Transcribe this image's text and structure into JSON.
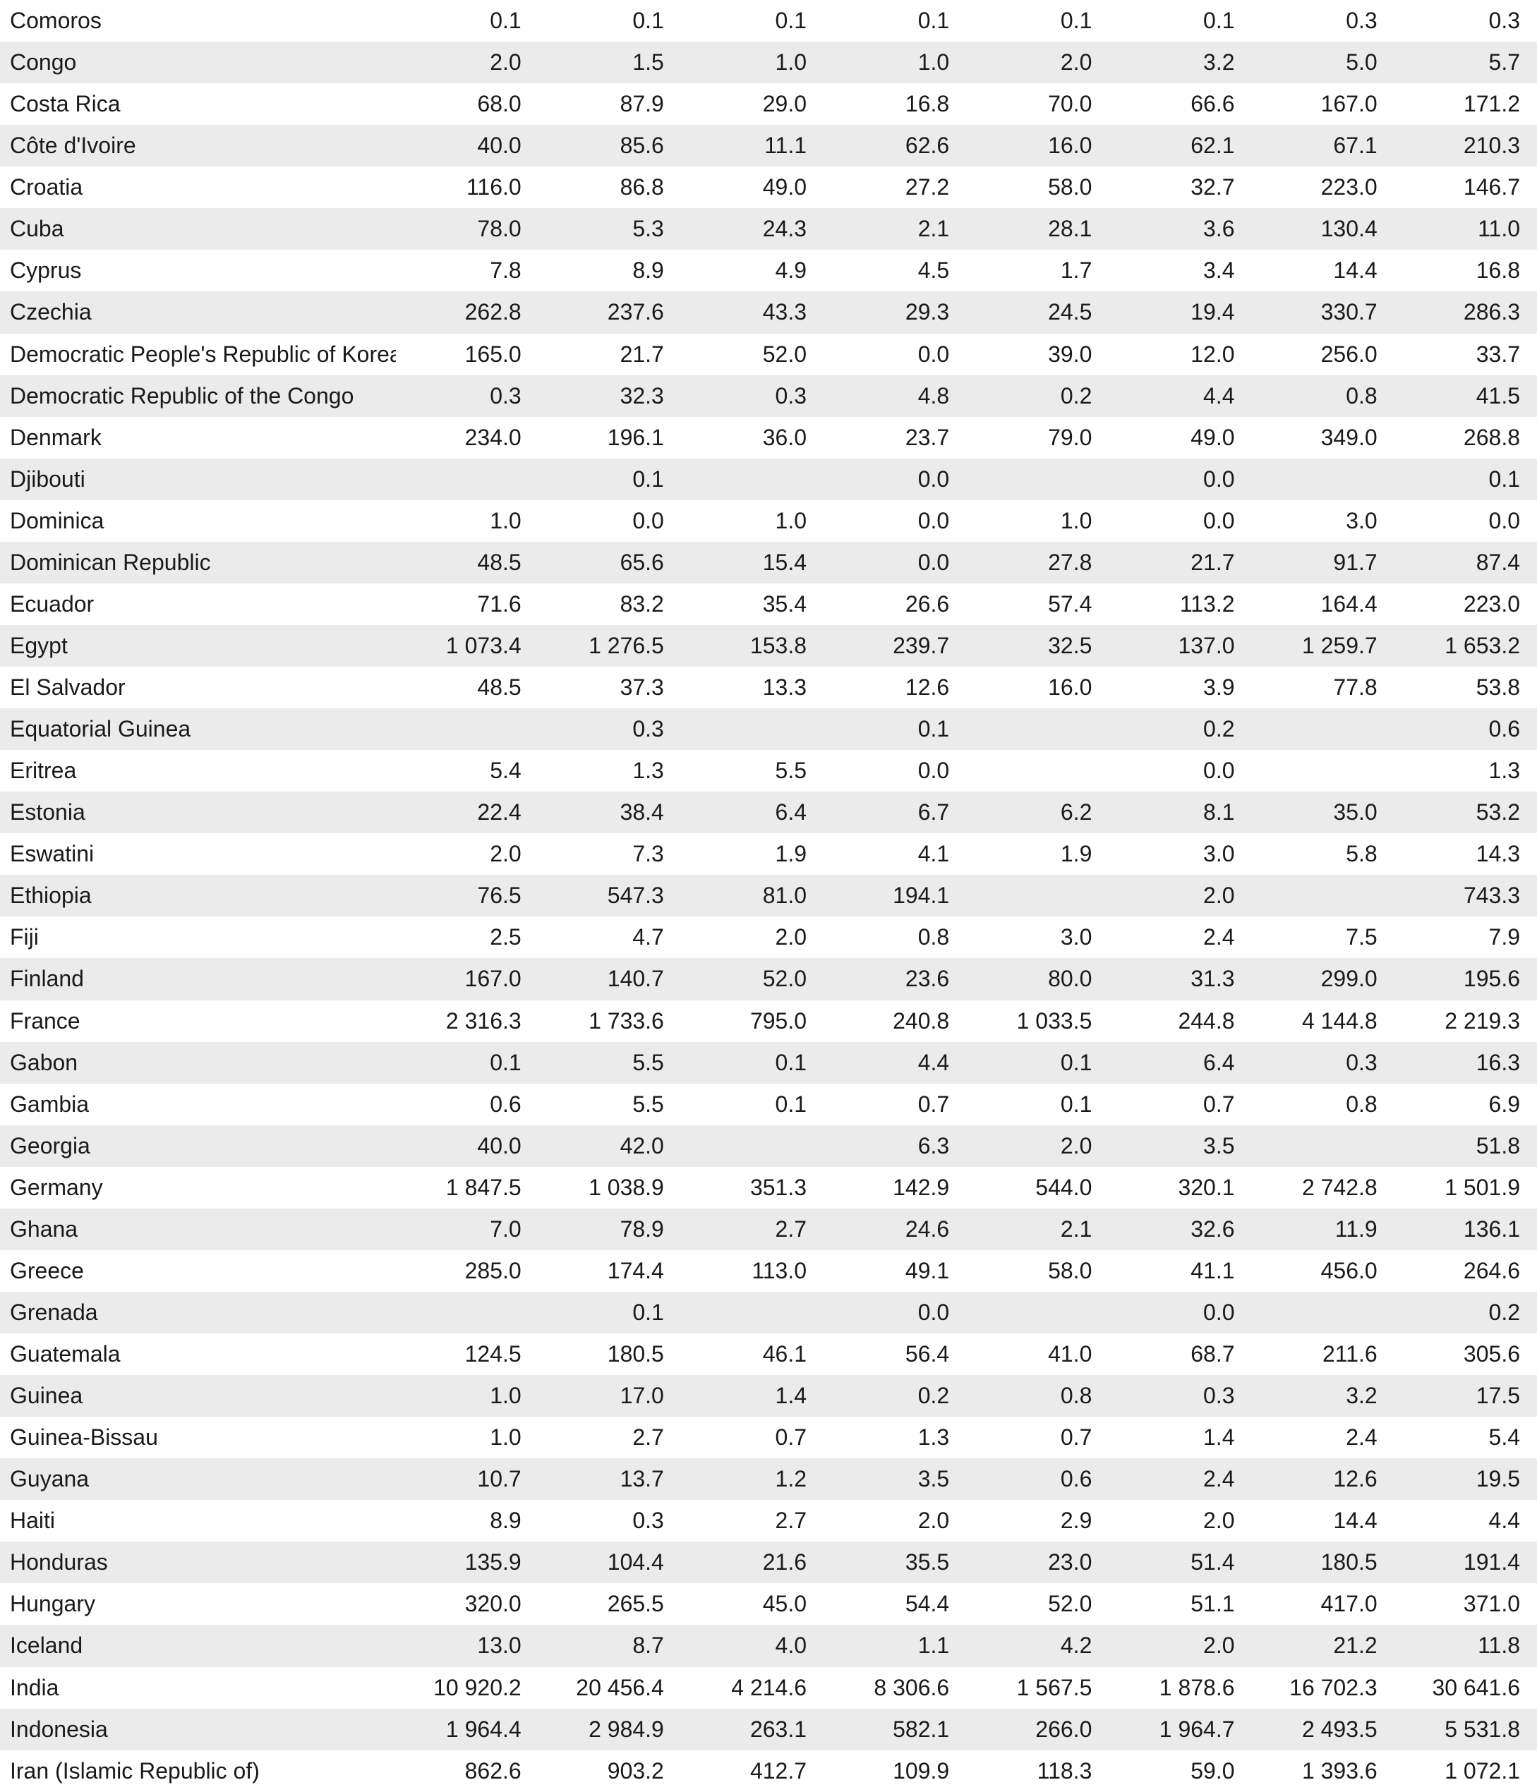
{
  "table": {
    "rows": [
      {
        "country": "Comoros",
        "values": [
          "0.1",
          "0.1",
          "0.1",
          "0.1",
          "0.1",
          "0.1",
          "0.3",
          "0.3"
        ]
      },
      {
        "country": "Congo",
        "values": [
          "2.0",
          "1.5",
          "1.0",
          "1.0",
          "2.0",
          "3.2",
          "5.0",
          "5.7"
        ]
      },
      {
        "country": "Costa Rica",
        "values": [
          "68.0",
          "87.9",
          "29.0",
          "16.8",
          "70.0",
          "66.6",
          "167.0",
          "171.2"
        ]
      },
      {
        "country": "Côte d'Ivoire",
        "values": [
          "40.0",
          "85.6",
          "11.1",
          "62.6",
          "16.0",
          "62.1",
          "67.1",
          "210.3"
        ]
      },
      {
        "country": "Croatia",
        "values": [
          "116.0",
          "86.8",
          "49.0",
          "27.2",
          "58.0",
          "32.7",
          "223.0",
          "146.7"
        ]
      },
      {
        "country": "Cuba",
        "values": [
          "78.0",
          "5.3",
          "24.3",
          "2.1",
          "28.1",
          "3.6",
          "130.4",
          "11.0"
        ]
      },
      {
        "country": "Cyprus",
        "values": [
          "7.8",
          "8.9",
          "4.9",
          "4.5",
          "1.7",
          "3.4",
          "14.4",
          "16.8"
        ]
      },
      {
        "country": "Czechia",
        "values": [
          "262.8",
          "237.6",
          "43.3",
          "29.3",
          "24.5",
          "19.4",
          "330.7",
          "286.3"
        ]
      },
      {
        "country": "Democratic People's Republic of Korea",
        "values": [
          "165.0",
          "21.7",
          "52.0",
          "0.0",
          "39.0",
          "12.0",
          "256.0",
          "33.7"
        ]
      },
      {
        "country": "Democratic Republic of the Congo",
        "values": [
          "0.3",
          "32.3",
          "0.3",
          "4.8",
          "0.2",
          "4.4",
          "0.8",
          "41.5"
        ]
      },
      {
        "country": "Denmark",
        "values": [
          "234.0",
          "196.1",
          "36.0",
          "23.7",
          "79.0",
          "49.0",
          "349.0",
          "268.8"
        ]
      },
      {
        "country": "Djibouti",
        "values": [
          "",
          "0.1",
          "",
          "0.0",
          "",
          "0.0",
          "",
          "0.1"
        ]
      },
      {
        "country": "Dominica",
        "values": [
          "1.0",
          "0.0",
          "1.0",
          "0.0",
          "1.0",
          "0.0",
          "3.0",
          "0.0"
        ]
      },
      {
        "country": "Dominican Republic",
        "values": [
          "48.5",
          "65.6",
          "15.4",
          "0.0",
          "27.8",
          "21.7",
          "91.7",
          "87.4"
        ]
      },
      {
        "country": "Ecuador",
        "values": [
          "71.6",
          "83.2",
          "35.4",
          "26.6",
          "57.4",
          "113.2",
          "164.4",
          "223.0"
        ]
      },
      {
        "country": "Egypt",
        "values": [
          "1 073.4",
          "1 276.5",
          "153.8",
          "239.7",
          "32.5",
          "137.0",
          "1 259.7",
          "1 653.2"
        ]
      },
      {
        "country": "El Salvador",
        "values": [
          "48.5",
          "37.3",
          "13.3",
          "12.6",
          "16.0",
          "3.9",
          "77.8",
          "53.8"
        ]
      },
      {
        "country": "Equatorial Guinea",
        "values": [
          "",
          "0.3",
          "",
          "0.1",
          "",
          "0.2",
          "",
          "0.6"
        ]
      },
      {
        "country": "Eritrea",
        "values": [
          "5.4",
          "1.3",
          "5.5",
          "0.0",
          "",
          "0.0",
          "",
          "1.3"
        ]
      },
      {
        "country": "Estonia",
        "values": [
          "22.4",
          "38.4",
          "6.4",
          "6.7",
          "6.2",
          "8.1",
          "35.0",
          "53.2"
        ]
      },
      {
        "country": "Eswatini",
        "values": [
          "2.0",
          "7.3",
          "1.9",
          "4.1",
          "1.9",
          "3.0",
          "5.8",
          "14.3"
        ]
      },
      {
        "country": "Ethiopia",
        "values": [
          "76.5",
          "547.3",
          "81.0",
          "194.1",
          "",
          "2.0",
          "",
          "743.3"
        ]
      },
      {
        "country": "Fiji",
        "values": [
          "2.5",
          "4.7",
          "2.0",
          "0.8",
          "3.0",
          "2.4",
          "7.5",
          "7.9"
        ]
      },
      {
        "country": "Finland",
        "values": [
          "167.0",
          "140.7",
          "52.0",
          "23.6",
          "80.0",
          "31.3",
          "299.0",
          "195.6"
        ]
      },
      {
        "country": "France",
        "values": [
          "2 316.3",
          "1 733.6",
          "795.0",
          "240.8",
          "1 033.5",
          "244.8",
          "4 144.8",
          "2 219.3"
        ]
      },
      {
        "country": "Gabon",
        "values": [
          "0.1",
          "5.5",
          "0.1",
          "4.4",
          "0.1",
          "6.4",
          "0.3",
          "16.3"
        ]
      },
      {
        "country": "Gambia",
        "values": [
          "0.6",
          "5.5",
          "0.1",
          "0.7",
          "0.1",
          "0.7",
          "0.8",
          "6.9"
        ]
      },
      {
        "country": "Georgia",
        "values": [
          "40.0",
          "42.0",
          "",
          "6.3",
          "2.0",
          "3.5",
          "",
          "51.8"
        ]
      },
      {
        "country": "Germany",
        "values": [
          "1 847.5",
          "1 038.9",
          "351.3",
          "142.9",
          "544.0",
          "320.1",
          "2 742.8",
          "1 501.9"
        ]
      },
      {
        "country": "Ghana",
        "values": [
          "7.0",
          "78.9",
          "2.7",
          "24.6",
          "2.1",
          "32.6",
          "11.9",
          "136.1"
        ]
      },
      {
        "country": "Greece",
        "values": [
          "285.0",
          "174.4",
          "113.0",
          "49.1",
          "58.0",
          "41.1",
          "456.0",
          "264.6"
        ]
      },
      {
        "country": "Grenada",
        "values": [
          "",
          "0.1",
          "",
          "0.0",
          "",
          "0.0",
          "",
          "0.2"
        ]
      },
      {
        "country": "Guatemala",
        "values": [
          "124.5",
          "180.5",
          "46.1",
          "56.4",
          "41.0",
          "68.7",
          "211.6",
          "305.6"
        ]
      },
      {
        "country": "Guinea",
        "values": [
          "1.0",
          "17.0",
          "1.4",
          "0.2",
          "0.8",
          "0.3",
          "3.2",
          "17.5"
        ]
      },
      {
        "country": "Guinea-Bissau",
        "values": [
          "1.0",
          "2.7",
          "0.7",
          "1.3",
          "0.7",
          "1.4",
          "2.4",
          "5.4"
        ]
      },
      {
        "country": "Guyana",
        "values": [
          "10.7",
          "13.7",
          "1.2",
          "3.5",
          "0.6",
          "2.4",
          "12.6",
          "19.5"
        ]
      },
      {
        "country": "Haiti",
        "values": [
          "8.9",
          "0.3",
          "2.7",
          "2.0",
          "2.9",
          "2.0",
          "14.4",
          "4.4"
        ]
      },
      {
        "country": "Honduras",
        "values": [
          "135.9",
          "104.4",
          "21.6",
          "35.5",
          "23.0",
          "51.4",
          "180.5",
          "191.4"
        ]
      },
      {
        "country": "Hungary",
        "values": [
          "320.0",
          "265.5",
          "45.0",
          "54.4",
          "52.0",
          "51.1",
          "417.0",
          "371.0"
        ]
      },
      {
        "country": "Iceland",
        "values": [
          "13.0",
          "8.7",
          "4.0",
          "1.1",
          "4.2",
          "2.0",
          "21.2",
          "11.8"
        ]
      },
      {
        "country": "India",
        "values": [
          "10 920.2",
          "20 456.4",
          "4 214.6",
          "8 306.6",
          "1 567.5",
          "1 878.6",
          "16 702.3",
          "30 641.6"
        ]
      },
      {
        "country": "Indonesia",
        "values": [
          "1 964.4",
          "2 984.9",
          "263.1",
          "582.1",
          "266.0",
          "1 964.7",
          "2 493.5",
          "5 531.8"
        ]
      },
      {
        "country": "Iran (Islamic Republic of)",
        "values": [
          "862.6",
          "903.2",
          "412.7",
          "109.9",
          "118.3",
          "59.0",
          "1 393.6",
          "1 072.1"
        ]
      }
    ]
  }
}
